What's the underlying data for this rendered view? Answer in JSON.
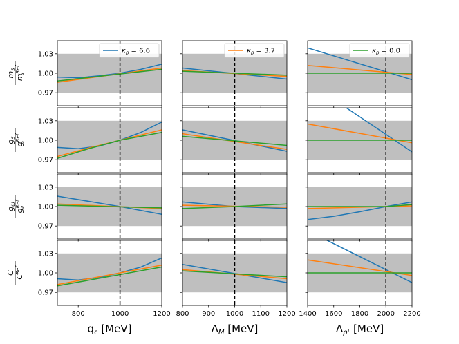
{
  "chart_data": {
    "type": "line",
    "colors": {
      "blue": "#1f77b4",
      "orange": "#ff7f0e",
      "green": "#2ca02c",
      "band": "#bfbfbf",
      "refline": "#000000"
    },
    "band_ylim": [
      0.97,
      1.03
    ],
    "y_ticks": [
      "0.97",
      "1.00",
      "1.03"
    ],
    "y_tick_values": [
      0.97,
      1.0,
      1.03
    ],
    "columns": [
      {
        "xlabel": "q_c [MeV]",
        "xlabel_main": "q",
        "xlabel_sub": "c",
        "xlabel_unit": " [MeV]",
        "xlim": [
          700,
          1200
        ],
        "x_ticks": [
          800,
          1000,
          1200
        ],
        "x_tick_labels": [
          "800",
          "1000",
          "1200"
        ],
        "ref_x": 1000,
        "legend": {
          "label": "κρ = 6.6",
          "kappa": "κ",
          "rho": "ρ",
          "value": " = 6.6",
          "color": "blue"
        }
      },
      {
        "xlabel": "Λ_M [MeV]",
        "xlabel_main": "Λ",
        "xlabel_sub": "M",
        "xlabel_unit": " [MeV]",
        "xlim": [
          800,
          1200
        ],
        "x_ticks": [
          800,
          900,
          1000,
          1100,
          1200
        ],
        "x_tick_labels": [
          "800",
          "900",
          "1000",
          "1100",
          "1200"
        ],
        "ref_x": 1000,
        "legend": {
          "label": "κρ = 3.7",
          "kappa": "κ",
          "rho": "ρ",
          "value": " = 3.7",
          "color": "orange"
        }
      },
      {
        "xlabel": "Λ_ρT [MeV]",
        "xlabel_main": "Λ",
        "xlabel_sub": "ρᵀ",
        "xlabel_unit": " [MeV]",
        "xlim": [
          1400,
          2200
        ],
        "x_ticks": [
          1400,
          1600,
          1800,
          2000,
          2200
        ],
        "x_tick_labels": [
          "1400",
          "1600",
          "1800",
          "2000",
          "2200"
        ],
        "ref_x": 2000,
        "legend": {
          "label": "κρ = 0.0",
          "kappa": "κ",
          "rho": "ρ",
          "value": " = 0.0",
          "color": "green"
        }
      }
    ],
    "rows": [
      {
        "ylabel": "m_s / m_s^Ref",
        "num": "m",
        "num_sub": "s",
        "den": "m",
        "den_sup": "Ref",
        "den_sub": "s"
      },
      {
        "ylabel": "g_s / g_s^Ref",
        "num": "g",
        "num_sub": "s",
        "den": "g",
        "den_sup": "Ref",
        "den_sub": "s"
      },
      {
        "ylabel": "g_ω / g_ω^Ref",
        "num": "g",
        "num_sub": "ω",
        "den": "g",
        "den_sup": "Ref",
        "den_sub": "ω"
      },
      {
        "ylabel": "C / C^Ref",
        "num": "C",
        "num_sub": "",
        "den": "C",
        "den_sup": "Ref",
        "den_sub": ""
      }
    ],
    "series": [
      [
        [
          {
            "name": "κρ = 6.6",
            "color": "blue",
            "x": [
              700,
              800,
              900,
              1000,
              1100,
              1200
            ],
            "y": [
              0.994,
              0.993,
              0.996,
              1.0,
              1.006,
              1.014
            ]
          },
          {
            "name": "κρ = 3.7",
            "color": "orange",
            "x": [
              700,
              1200
            ],
            "y": [
              0.986,
              1.008
            ]
          },
          {
            "name": "κρ = 0.0",
            "color": "green",
            "x": [
              700,
              1200
            ],
            "y": [
              0.988,
              1.006
            ]
          }
        ],
        [
          {
            "name": "κρ = 6.6",
            "color": "blue",
            "x": [
              800,
              1200
            ],
            "y": [
              1.008,
              0.991
            ]
          },
          {
            "name": "κρ = 3.7",
            "color": "orange",
            "x": [
              800,
              1200
            ],
            "y": [
              1.004,
              0.995
            ]
          },
          {
            "name": "κρ = 0.0",
            "color": "green",
            "x": [
              800,
              1200
            ],
            "y": [
              1.003,
              0.997
            ]
          }
        ],
        [
          {
            "name": "κρ = 6.6",
            "color": "blue",
            "x": [
              1400,
              2200
            ],
            "y": [
              1.039,
              0.99
            ]
          },
          {
            "name": "κρ = 3.7",
            "color": "orange",
            "x": [
              1400,
              2200
            ],
            "y": [
              1.012,
              0.998
            ]
          },
          {
            "name": "κρ = 0.0",
            "color": "green",
            "x": [
              1400,
              2200
            ],
            "y": [
              1.0,
              1.0
            ]
          }
        ]
      ],
      [
        [
          {
            "name": "κρ = 6.6",
            "color": "blue",
            "x": [
              700,
              800,
              900,
              1000,
              1100,
              1200
            ],
            "y": [
              0.989,
              0.987,
              0.991,
              1.0,
              1.012,
              1.028
            ]
          },
          {
            "name": "κρ = 3.7",
            "color": "orange",
            "x": [
              700,
              850,
              1000,
              1200
            ],
            "y": [
              0.975,
              0.988,
              1.0,
              1.016
            ]
          },
          {
            "name": "κρ = 0.0",
            "color": "green",
            "x": [
              700,
              850,
              1000,
              1200
            ],
            "y": [
              0.972,
              0.987,
              1.0,
              1.012
            ]
          }
        ],
        [
          {
            "name": "κρ = 6.6",
            "color": "blue",
            "x": [
              800,
              1200
            ],
            "y": [
              1.016,
              0.983
            ]
          },
          {
            "name": "κρ = 3.7",
            "color": "orange",
            "x": [
              800,
              1200
            ],
            "y": [
              1.01,
              0.986
            ]
          },
          {
            "name": "κρ = 0.0",
            "color": "green",
            "x": [
              800,
              1200
            ],
            "y": [
              1.006,
              0.992
            ]
          }
        ],
        [
          {
            "name": "κρ = 6.6",
            "color": "blue",
            "x": [
              1400,
              2200
            ],
            "y": [
              1.09,
              0.982
            ]
          },
          {
            "name": "κρ = 3.7",
            "color": "orange",
            "x": [
              1400,
              2200
            ],
            "y": [
              1.025,
              0.996
            ]
          },
          {
            "name": "κρ = 0.0",
            "color": "green",
            "x": [
              1400,
              2200
            ],
            "y": [
              1.0,
              1.0
            ]
          }
        ]
      ],
      [
        [
          {
            "name": "κρ = 6.6",
            "color": "blue",
            "x": [
              700,
              1000,
              1200
            ],
            "y": [
              1.016,
              1.0,
              0.988
            ]
          },
          {
            "name": "κρ = 3.7",
            "color": "orange",
            "x": [
              700,
              1200
            ],
            "y": [
              1.004,
              0.997
            ]
          },
          {
            "name": "κρ = 0.0",
            "color": "green",
            "x": [
              700,
              1200
            ],
            "y": [
              1.002,
              0.998
            ]
          }
        ],
        [
          {
            "name": "κρ = 6.6",
            "color": "blue",
            "x": [
              800,
              1000,
              1200
            ],
            "y": [
              1.007,
              1.0,
              0.997
            ]
          },
          {
            "name": "κρ = 3.7",
            "color": "orange",
            "x": [
              800,
              1200
            ],
            "y": [
              1.002,
              0.999
            ]
          },
          {
            "name": "κρ = 0.0",
            "color": "green",
            "x": [
              800,
              1000,
              1200
            ],
            "y": [
              0.997,
              1.0,
              1.004
            ]
          }
        ],
        [
          {
            "name": "κρ = 6.6",
            "color": "blue",
            "x": [
              1400,
              1600,
              1800,
              2000,
              2200
            ],
            "y": [
              0.98,
              0.985,
              0.992,
              1.0,
              1.007
            ]
          },
          {
            "name": "κρ = 3.7",
            "color": "orange",
            "x": [
              1400,
              2200
            ],
            "y": [
              0.997,
              1.001
            ]
          },
          {
            "name": "κρ = 0.0",
            "color": "green",
            "x": [
              1400,
              2000,
              2200
            ],
            "y": [
              1.0,
              1.0,
              1.003
            ]
          }
        ]
      ],
      [
        [
          {
            "name": "κρ = 6.6",
            "color": "blue",
            "x": [
              700,
              800,
              900,
              1000,
              1100,
              1200
            ],
            "y": [
              0.991,
              0.989,
              0.993,
              1.0,
              1.009,
              1.023
            ]
          },
          {
            "name": "κρ = 3.7",
            "color": "orange",
            "x": [
              700,
              1200
            ],
            "y": [
              0.982,
              1.012
            ]
          },
          {
            "name": "κρ = 0.0",
            "color": "green",
            "x": [
              700,
              1200
            ],
            "y": [
              0.98,
              1.009
            ]
          }
        ],
        [
          {
            "name": "κρ = 6.6",
            "color": "blue",
            "x": [
              800,
              1200
            ],
            "y": [
              1.013,
              0.985
            ]
          },
          {
            "name": "κρ = 3.7",
            "color": "orange",
            "x": [
              800,
              1200
            ],
            "y": [
              1.005,
              0.991
            ]
          },
          {
            "name": "κρ = 0.0",
            "color": "green",
            "x": [
              800,
              1200
            ],
            "y": [
              1.003,
              0.994
            ]
          }
        ],
        [
          {
            "name": "κρ = 6.6",
            "color": "blue",
            "x": [
              1400,
              2200
            ],
            "y": [
              1.065,
              0.985
            ]
          },
          {
            "name": "κρ = 3.7",
            "color": "orange",
            "x": [
              1400,
              2200
            ],
            "y": [
              1.02,
              0.996
            ]
          },
          {
            "name": "κρ = 0.0",
            "color": "green",
            "x": [
              1400,
              2200
            ],
            "y": [
              1.0,
              1.0
            ]
          }
        ]
      ]
    ]
  }
}
